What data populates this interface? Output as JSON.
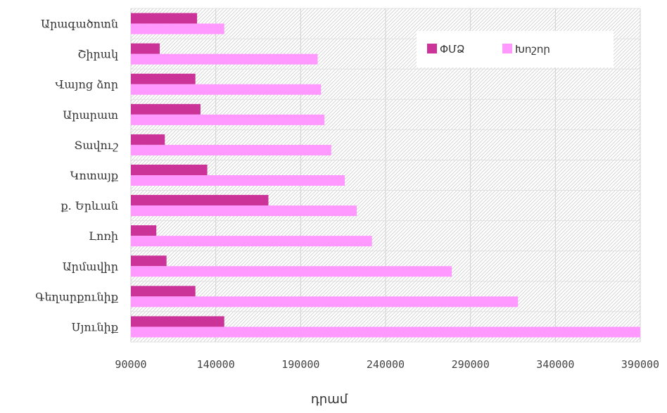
{
  "chart_data": {
    "type": "bar",
    "orientation": "horizontal",
    "categories": [
      "Արագածոտն",
      "Շիրակ",
      "Վայոց ձոր",
      "Արարատ",
      "Տավուշ",
      "Կոտայք",
      "ք. Երևան",
      "Լոռի",
      "Արմավիր",
      "Գեղարքունիք",
      "Սյունիք"
    ],
    "series": [
      {
        "name": "ՓՄՁ",
        "color": "#cc3399",
        "values": [
          129000,
          107000,
          128000,
          131000,
          110000,
          135000,
          171000,
          105000,
          111000,
          128000,
          145000
        ]
      },
      {
        "name": "Խոշոր",
        "color": "#ff99ff",
        "values": [
          145000,
          200000,
          202000,
          204000,
          208000,
          216000,
          223000,
          232000,
          279000,
          318000,
          390000
        ]
      }
    ],
    "xlim": [
      90000,
      390000
    ],
    "xticks": [
      "90000",
      "140000",
      "190000",
      "240000",
      "290000",
      "340000",
      "390000"
    ],
    "xlabel": "դրամ",
    "ylabel": "",
    "title": "",
    "grid": true,
    "legend": "top-right"
  }
}
